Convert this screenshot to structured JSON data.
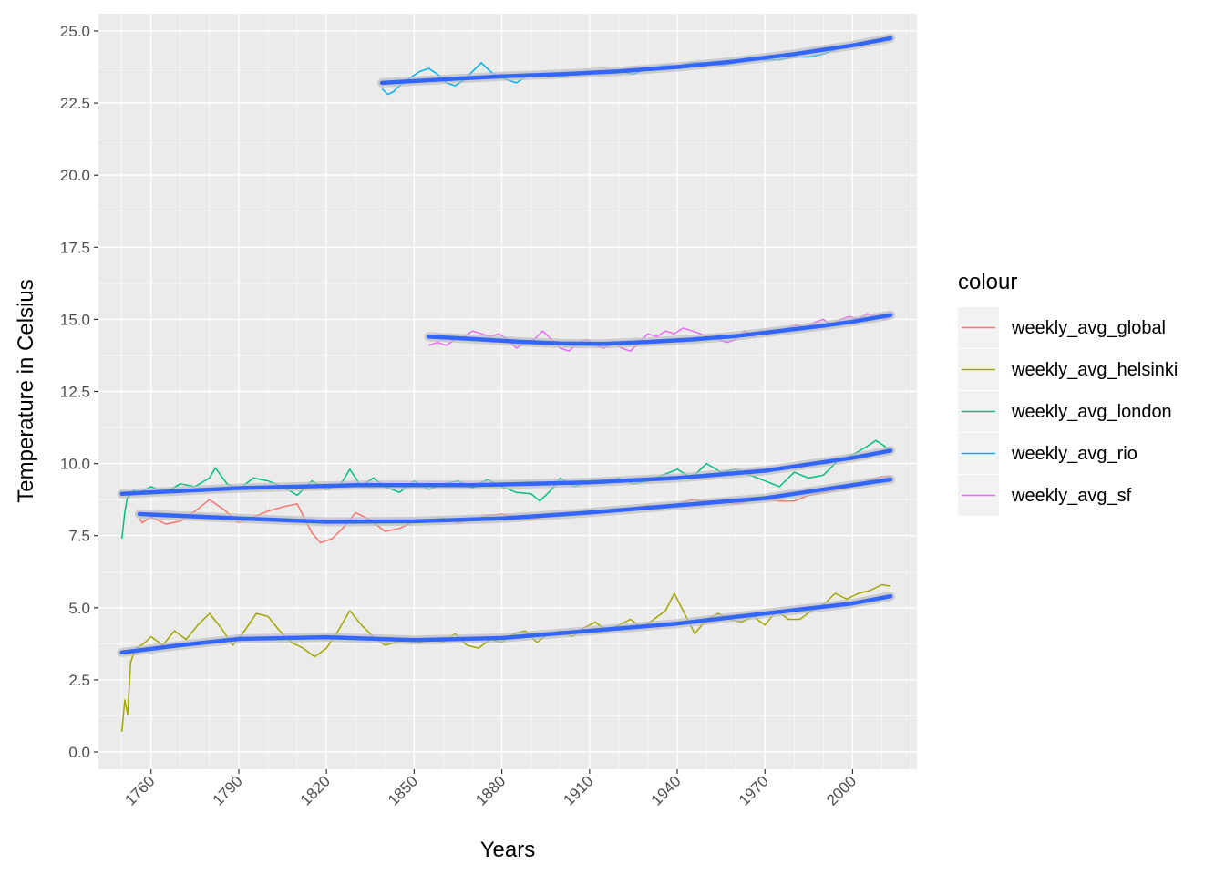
{
  "chart_data": {
    "type": "line",
    "xlabel": "Years",
    "ylabel": "Temperature in Celsius",
    "xlim": [
      1742,
      2022
    ],
    "ylim": [
      -0.6,
      25.6
    ],
    "x_ticks": [
      1760,
      1790,
      1820,
      1850,
      1880,
      1910,
      1940,
      1970,
      2000
    ],
    "x_tick_labels": [
      "1760",
      "1790",
      "1820",
      "1850",
      "1880",
      "1910",
      "1940",
      "1970",
      "2000"
    ],
    "y_ticks": [
      0,
      2.5,
      5,
      7.5,
      10,
      12.5,
      15,
      17.5,
      20,
      22.5,
      25
    ],
    "y_tick_labels": [
      "0.0",
      "2.5",
      "5.0",
      "7.5",
      "10.0",
      "12.5",
      "15.0",
      "17.5",
      "20.0",
      "22.5",
      "25.0"
    ],
    "grid": true,
    "panel_background": "#ebebeb",
    "grid_color": "#ffffff",
    "trend_color": "#3366ff",
    "legend": {
      "title": "colour",
      "position": "right"
    },
    "series": [
      {
        "name": "weekly_avg_global",
        "color": "#F8766D",
        "x": [
          1756,
          1757,
          1760,
          1765,
          1770,
          1775,
          1780,
          1785,
          1790,
          1795,
          1800,
          1805,
          1810,
          1815,
          1818,
          1822,
          1826,
          1830,
          1835,
          1840,
          1845,
          1850,
          1855,
          1860,
          1865,
          1870,
          1875,
          1880,
          1885,
          1890,
          1895,
          1900,
          1905,
          1910,
          1915,
          1920,
          1925,
          1930,
          1935,
          1940,
          1945,
          1950,
          1955,
          1960,
          1965,
          1970,
          1975,
          1980,
          1985,
          1990,
          1995,
          2000,
          2005,
          2010,
          2013
        ],
        "y": [
          8.1,
          7.95,
          8.15,
          7.9,
          8.0,
          8.35,
          8.75,
          8.4,
          7.95,
          8.15,
          8.35,
          8.5,
          8.6,
          7.6,
          7.25,
          7.4,
          7.8,
          8.3,
          8.05,
          7.65,
          7.75,
          8.0,
          8.0,
          8.1,
          7.95,
          8.05,
          8.2,
          8.25,
          8.15,
          8.05,
          8.2,
          8.25,
          8.3,
          8.35,
          8.35,
          8.35,
          8.45,
          8.55,
          8.5,
          8.6,
          8.75,
          8.7,
          8.7,
          8.6,
          8.7,
          8.75,
          8.7,
          8.7,
          8.9,
          9.0,
          9.1,
          9.2,
          9.4,
          9.55,
          9.55
        ],
        "trend_x": [
          1756,
          1790,
          1820,
          1850,
          1880,
          1910,
          1940,
          1970,
          2013
        ],
        "trend_y": [
          8.25,
          8.1,
          7.98,
          8.0,
          8.1,
          8.3,
          8.55,
          8.8,
          9.45
        ]
      },
      {
        "name": "weekly_avg_helsinki",
        "color": "#A3A500",
        "x": [
          1750,
          1751,
          1752,
          1753,
          1754,
          1755,
          1758,
          1760,
          1764,
          1768,
          1772,
          1776,
          1780,
          1784,
          1788,
          1792,
          1796,
          1800,
          1804,
          1808,
          1812,
          1816,
          1820,
          1824,
          1828,
          1832,
          1836,
          1840,
          1844,
          1848,
          1852,
          1856,
          1860,
          1864,
          1868,
          1872,
          1876,
          1880,
          1884,
          1888,
          1892,
          1896,
          1900,
          1904,
          1908,
          1912,
          1916,
          1920,
          1924,
          1928,
          1932,
          1936,
          1939,
          1942,
          1946,
          1950,
          1954,
          1958,
          1962,
          1966,
          1970,
          1974,
          1978,
          1982,
          1986,
          1990,
          1994,
          1998,
          2002,
          2006,
          2010,
          2013
        ],
        "y": [
          0.7,
          1.8,
          1.3,
          3.1,
          3.4,
          3.6,
          3.8,
          4.0,
          3.7,
          4.2,
          3.9,
          4.4,
          4.8,
          4.3,
          3.7,
          4.2,
          4.8,
          4.7,
          4.2,
          3.8,
          3.6,
          3.3,
          3.6,
          4.2,
          4.9,
          4.4,
          4.0,
          3.7,
          3.8,
          3.9,
          3.8,
          3.9,
          3.8,
          4.1,
          3.7,
          3.6,
          3.9,
          3.8,
          4.1,
          4.2,
          3.8,
          4.1,
          4.2,
          4.0,
          4.3,
          4.5,
          4.2,
          4.4,
          4.6,
          4.3,
          4.6,
          4.9,
          5.5,
          4.9,
          4.1,
          4.6,
          4.8,
          4.6,
          4.5,
          4.7,
          4.4,
          4.9,
          4.6,
          4.6,
          4.9,
          5.1,
          5.5,
          5.3,
          5.5,
          5.6,
          5.8,
          5.75
        ],
        "trend_x": [
          1750,
          1770,
          1790,
          1820,
          1850,
          1880,
          1910,
          1940,
          1970,
          2000,
          2013
        ],
        "trend_y": [
          3.45,
          3.7,
          3.92,
          3.98,
          3.88,
          3.95,
          4.2,
          4.45,
          4.8,
          5.15,
          5.4
        ]
      },
      {
        "name": "weekly_avg_london",
        "color": "#00BF7D",
        "x": [
          1750,
          1751,
          1752,
          1753,
          1754,
          1756,
          1760,
          1765,
          1770,
          1775,
          1780,
          1782,
          1786,
          1790,
          1795,
          1800,
          1805,
          1810,
          1815,
          1820,
          1825,
          1828,
          1832,
          1836,
          1840,
          1845,
          1850,
          1855,
          1860,
          1865,
          1870,
          1875,
          1880,
          1885,
          1890,
          1893,
          1897,
          1900,
          1905,
          1910,
          1915,
          1920,
          1925,
          1930,
          1935,
          1940,
          1945,
          1950,
          1955,
          1960,
          1965,
          1970,
          1975,
          1980,
          1985,
          1990,
          1995,
          2000,
          2005,
          2008,
          2011,
          2013
        ],
        "y": [
          7.4,
          8.3,
          8.9,
          8.9,
          9.1,
          9.0,
          9.2,
          9.0,
          9.3,
          9.2,
          9.5,
          9.85,
          9.3,
          9.1,
          9.5,
          9.4,
          9.2,
          8.9,
          9.4,
          9.1,
          9.3,
          9.8,
          9.2,
          9.5,
          9.2,
          9.0,
          9.4,
          9.1,
          9.3,
          9.4,
          9.15,
          9.45,
          9.2,
          9.0,
          8.95,
          8.7,
          9.1,
          9.5,
          9.2,
          9.4,
          9.3,
          9.5,
          9.3,
          9.4,
          9.6,
          9.8,
          9.5,
          10.0,
          9.7,
          9.8,
          9.6,
          9.4,
          9.2,
          9.7,
          9.5,
          9.6,
          10.1,
          10.3,
          10.6,
          10.8,
          10.6,
          10.4
        ],
        "trend_x": [
          1750,
          1790,
          1830,
          1870,
          1910,
          1940,
          1970,
          2000,
          2013
        ],
        "trend_y": [
          8.95,
          9.15,
          9.25,
          9.25,
          9.35,
          9.5,
          9.75,
          10.2,
          10.45
        ]
      },
      {
        "name": "weekly_avg_rio",
        "color": "#00B0F6",
        "x": [
          1839,
          1841,
          1843,
          1846,
          1849,
          1852,
          1855,
          1858,
          1861,
          1864,
          1867,
          1870,
          1873,
          1876,
          1879,
          1882,
          1885,
          1888,
          1891,
          1895,
          1900,
          1905,
          1910,
          1915,
          1920,
          1925,
          1930,
          1935,
          1940,
          1945,
          1950,
          1955,
          1960,
          1965,
          1970,
          1975,
          1980,
          1985,
          1990,
          1995,
          2000,
          2005,
          2010,
          2013
        ],
        "y": [
          23.0,
          22.8,
          22.9,
          23.2,
          23.4,
          23.6,
          23.7,
          23.5,
          23.2,
          23.1,
          23.3,
          23.6,
          23.9,
          23.6,
          23.4,
          23.3,
          23.2,
          23.4,
          23.5,
          23.5,
          23.4,
          23.5,
          23.5,
          23.6,
          23.6,
          23.5,
          23.7,
          23.8,
          23.8,
          23.9,
          23.9,
          23.8,
          23.9,
          24.1,
          24.0,
          24.0,
          24.1,
          24.1,
          24.2,
          24.4,
          24.5,
          24.6,
          24.7,
          24.7
        ],
        "trend_x": [
          1839,
          1860,
          1880,
          1900,
          1920,
          1940,
          1960,
          1980,
          2000,
          2013
        ],
        "trend_y": [
          23.2,
          23.32,
          23.43,
          23.5,
          23.6,
          23.75,
          23.95,
          24.2,
          24.5,
          24.75
        ]
      },
      {
        "name": "weekly_avg_sf",
        "color": "#E76BF3",
        "x": [
          1855,
          1858,
          1861,
          1864,
          1867,
          1870,
          1873,
          1876,
          1879,
          1882,
          1885,
          1888,
          1891,
          1894,
          1897,
          1900,
          1903,
          1906,
          1909,
          1912,
          1915,
          1918,
          1921,
          1924,
          1927,
          1930,
          1933,
          1936,
          1939,
          1942,
          1945,
          1948,
          1951,
          1954,
          1957,
          1960,
          1963,
          1966,
          1969,
          1972,
          1975,
          1978,
          1981,
          1984,
          1987,
          1990,
          1993,
          1996,
          1999,
          2002,
          2005,
          2008,
          2011,
          2013
        ],
        "y": [
          14.1,
          14.2,
          14.1,
          14.3,
          14.4,
          14.6,
          14.5,
          14.4,
          14.5,
          14.3,
          14.0,
          14.2,
          14.3,
          14.6,
          14.3,
          14.0,
          13.9,
          14.2,
          14.3,
          14.1,
          14.0,
          14.2,
          14.0,
          13.9,
          14.2,
          14.5,
          14.4,
          14.6,
          14.5,
          14.7,
          14.6,
          14.5,
          14.4,
          14.3,
          14.2,
          14.3,
          14.6,
          14.4,
          14.6,
          14.5,
          14.6,
          14.7,
          14.8,
          14.7,
          14.9,
          15.0,
          14.8,
          15.0,
          15.1,
          15.0,
          15.2,
          15.1,
          15.0,
          15.1
        ],
        "trend_x": [
          1855,
          1870,
          1885,
          1900,
          1915,
          1930,
          1945,
          1960,
          1975,
          1990,
          2000,
          2013
        ],
        "trend_y": [
          14.4,
          14.32,
          14.23,
          14.17,
          14.15,
          14.22,
          14.3,
          14.42,
          14.6,
          14.78,
          14.92,
          15.15
        ]
      }
    ]
  }
}
